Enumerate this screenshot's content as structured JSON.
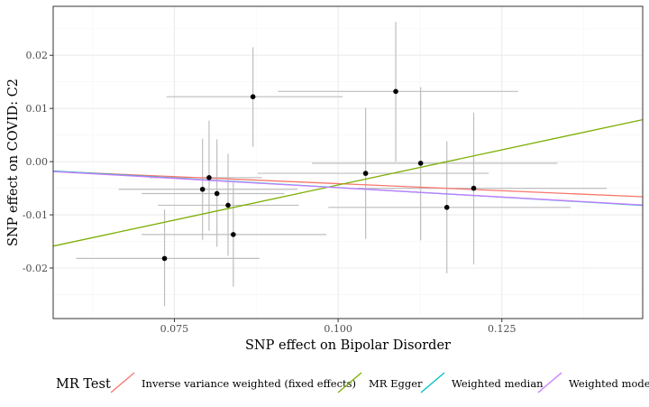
{
  "chart_data": {
    "type": "scatter",
    "xlabel": "SNP effect on Bipolar Disorder",
    "ylabel": "SNP effect on COVID: C2",
    "xlim": [
      0.0565,
      0.1465
    ],
    "ylim": [
      -0.0295,
      0.0292
    ],
    "x_ticks": [
      0.075,
      0.1,
      0.125
    ],
    "x_tick_labels": [
      "0.075",
      "0.100",
      "0.125"
    ],
    "y_ticks": [
      -0.02,
      -0.01,
      0.0,
      0.01,
      0.02
    ],
    "y_tick_labels": [
      "-0.02",
      "-0.01",
      "0.00",
      "0.01",
      "0.02"
    ],
    "grid": true,
    "legend_position": "bottom",
    "legend_title": "MR Test",
    "points": [
      {
        "x": 0.087,
        "y": 0.0122,
        "x_lo": 0.0738,
        "x_hi": 0.1007,
        "y_lo": 0.0028,
        "y_hi": 0.0215
      },
      {
        "x": 0.1088,
        "y": 0.0132,
        "x_lo": 0.0908,
        "x_hi": 0.1275,
        "y_lo": 0.0,
        "y_hi": 0.0263
      },
      {
        "x": 0.0803,
        "y": -0.003,
        "x_lo": 0.0713,
        "x_hi": 0.0884,
        "y_lo": -0.013,
        "y_hi": 0.0077
      },
      {
        "x": 0.1042,
        "y": -0.0022,
        "x_lo": 0.0877,
        "x_hi": 0.123,
        "y_lo": -0.0145,
        "y_hi": 0.0101
      },
      {
        "x": 0.1126,
        "y": -0.0003,
        "x_lo": 0.096,
        "x_hi": 0.1335,
        "y_lo": -0.0148,
        "y_hi": 0.014
      },
      {
        "x": 0.0793,
        "y": -0.0052,
        "x_lo": 0.0665,
        "x_hi": 0.0938,
        "y_lo": -0.0147,
        "y_hi": 0.0043
      },
      {
        "x": 0.0815,
        "y": -0.006,
        "x_lo": 0.07,
        "x_hi": 0.0918,
        "y_lo": -0.016,
        "y_hi": 0.0042
      },
      {
        "x": 0.0832,
        "y": -0.0082,
        "x_lo": 0.0725,
        "x_hi": 0.094,
        "y_lo": -0.0177,
        "y_hi": 0.0015
      },
      {
        "x": 0.084,
        "y": -0.0137,
        "x_lo": 0.07,
        "x_hi": 0.0982,
        "y_lo": -0.0235,
        "y_hi": -0.0037
      },
      {
        "x": 0.0735,
        "y": -0.0182,
        "x_lo": 0.06,
        "x_hi": 0.088,
        "y_lo": -0.0272,
        "y_hi": -0.009
      },
      {
        "x": 0.1207,
        "y": -0.005,
        "x_lo": 0.103,
        "x_hi": 0.141,
        "y_lo": -0.0193,
        "y_hi": 0.0092
      },
      {
        "x": 0.1166,
        "y": -0.0086,
        "x_lo": 0.0985,
        "x_hi": 0.1355,
        "y_lo": -0.021,
        "y_hi": 0.0038
      }
    ],
    "lines": [
      {
        "name": "Inverse variance weighted (fixed effects)",
        "color": "#F8766D",
        "intercept": 0.00115,
        "slope": -0.0529
      },
      {
        "name": "MR Egger",
        "color": "#7CAE00",
        "intercept": -0.0308,
        "slope": 0.2641
      },
      {
        "name": "Weighted median",
        "color": "#00BFC4",
        "intercept": 0.0023,
        "slope": -0.0718
      },
      {
        "name": "Weighted mode",
        "color": "#C77CFF",
        "intercept": 0.0021,
        "slope": -0.07
      }
    ],
    "colors": {
      "point": "#000000",
      "errorbar": "#bebebe",
      "grid_major": "#ebebeb",
      "grid_minor": "#f5f5f5",
      "panel_border": "#333333"
    }
  }
}
